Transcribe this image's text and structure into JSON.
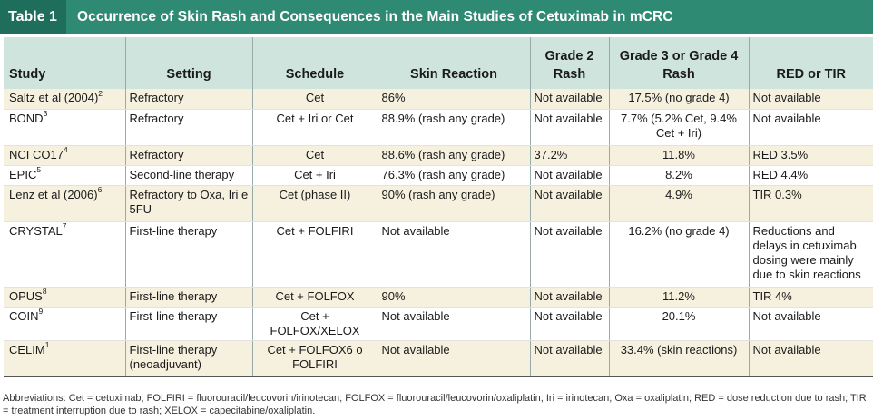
{
  "title": {
    "label": "Table 1",
    "text": "Occurrence of Skin Rash and Consequences in the Main Studies of Cetuximab in mCRC"
  },
  "headers": [
    "Study",
    "Setting",
    "Schedule",
    "Skin Reaction",
    "Grade 2 Rash",
    "Grade 3 or Grade 4 Rash",
    "RED or TIR"
  ],
  "rows": [
    {
      "study": "Saltz et al (2004)",
      "ref": "2",
      "setting": "Refractory",
      "schedule": "Cet",
      "skin": "86%",
      "g2": "Not available",
      "g34": "17.5% (no grade 4)",
      "red": "Not available"
    },
    {
      "study": "BOND",
      "ref": "3",
      "setting": "Refractory",
      "schedule": "Cet + Iri or Cet",
      "skin": "88.9% (rash any grade)",
      "g2": "Not available",
      "g34": "7.7% (5.2% Cet, 9.4% Cet + Iri)",
      "red": "Not available"
    },
    {
      "study": "NCI CO17",
      "ref": "4",
      "setting": "Refractory",
      "schedule": "Cet",
      "skin": "88.6% (rash any grade)",
      "g2": "37.2%",
      "g34": "11.8%",
      "red": "RED 3.5%"
    },
    {
      "study": "EPIC",
      "ref": "5",
      "setting": "Second-line therapy",
      "schedule": "Cet + Iri",
      "skin": "76.3% (rash any grade)",
      "g2": "Not available",
      "g34": "8.2%",
      "red": "RED 4.4%"
    },
    {
      "study": "Lenz et al (2006)",
      "ref": "6",
      "setting": "Refractory to Oxa, Iri e 5FU",
      "schedule": "Cet (phase II)",
      "skin": "90% (rash any grade)",
      "g2": "Not available",
      "g34": "4.9%",
      "red": "TIR 0.3%"
    },
    {
      "study": "CRYSTAL",
      "ref": "7",
      "setting": "First-line therapy",
      "schedule": "Cet + FOLFIRI",
      "skin": "Not available",
      "g2": "Not available",
      "g34": "16.2% (no grade 4)",
      "red": "Reductions and delays in cetuximab dosing were mainly due to skin reactions"
    },
    {
      "study": "OPUS",
      "ref": "8",
      "setting": "First-line therapy",
      "schedule": "Cet + FOLFOX",
      "skin": "90%",
      "g2": "Not available",
      "g34": "11.2%",
      "red": "TIR 4%"
    },
    {
      "study": "COIN",
      "ref": "9",
      "setting": "First-line therapy",
      "schedule": "Cet + FOLFOX/XELOX",
      "skin": "Not available",
      "g2": "Not available",
      "g34": "20.1%",
      "red": "Not available"
    },
    {
      "study": "CELIM",
      "ref": "1",
      "setting": "First-line therapy (neoadjuvant)",
      "schedule": "Cet + FOLFOX6 o FOLFIRI",
      "skin": "Not available",
      "g2": "Not available",
      "g34": "33.4% (skin reactions)",
      "red": "Not available"
    }
  ],
  "footnote": "Abbreviations: Cet = cetuximab; FOLFIRI = fluorouracil/leucovorin/irinotecan; FOLFOX = fluorouracil/leucovorin/oxaliplatin; Iri = irinotecan; Oxa = oxaliplatin; RED = dose reduction due to rash; TIR = treatment interruption due to rash; XELOX = capecitabine/oxaliplatin."
}
